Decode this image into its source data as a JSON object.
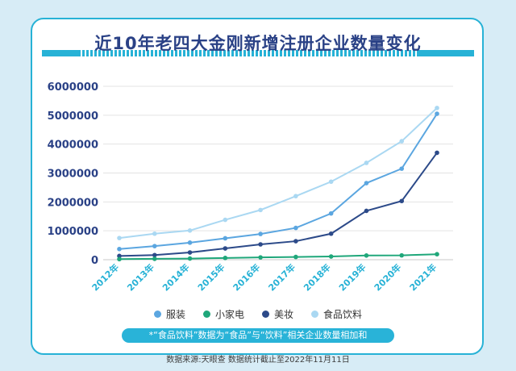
{
  "chart_data": {
    "type": "line",
    "title": "近10年老四大金刚新增注册企业数量变化",
    "categories": [
      "2012年",
      "2013年",
      "2014年",
      "2015年",
      "2016年",
      "2017年",
      "2018年",
      "2019年",
      "2020年",
      "2021年"
    ],
    "ylim": [
      0,
      6000000
    ],
    "yticks": [
      0,
      1000000,
      2000000,
      3000000,
      4000000,
      5000000,
      6000000
    ],
    "grid": true,
    "legend_position": "bottom",
    "series": [
      {
        "name": "服装",
        "color": "#5ba6e0",
        "values": [
          370000,
          470000,
          590000,
          740000,
          890000,
          1100000,
          1600000,
          2650000,
          3150000,
          5050000
        ]
      },
      {
        "name": "小家电",
        "color": "#1fa77a",
        "values": [
          20000,
          30000,
          40000,
          60000,
          80000,
          95000,
          110000,
          145000,
          150000,
          190000
        ]
      },
      {
        "name": "美妆",
        "color": "#2c4a89",
        "values": [
          130000,
          160000,
          250000,
          390000,
          530000,
          640000,
          900000,
          1690000,
          2030000,
          3700000
        ]
      },
      {
        "name": "食品饮料",
        "color": "#aad8f2",
        "values": [
          750000,
          900000,
          1010000,
          1380000,
          1720000,
          2200000,
          2700000,
          3350000,
          4100000,
          5250000
        ]
      }
    ]
  },
  "note": "*“食品饮料”数据为“食品”与“饮料”相关企业数量相加和",
  "source": "数据来源:天眼查 数据统计截止至2022年11月11日"
}
